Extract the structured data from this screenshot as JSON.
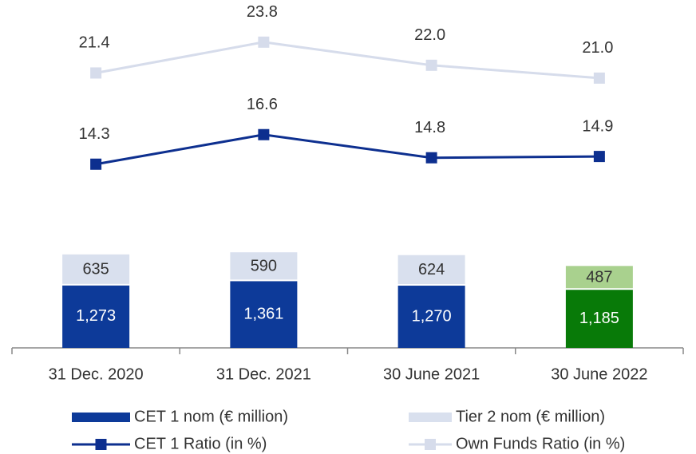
{
  "chart_data": {
    "type": "combo",
    "categories": [
      "31 Dec. 2020",
      "31 Dec. 2021",
      "30 June 2021",
      "30 June 2022"
    ],
    "series": [
      {
        "name": "CET 1 nom (€ million)",
        "type": "bar",
        "color": "#0d3a99",
        "colors": [
          "#0d3a99",
          "#0d3a99",
          "#0d3a99",
          "#087a08"
        ],
        "values": [
          1273,
          1361,
          1270,
          1185
        ],
        "value_labels": [
          "1,273",
          "1,361",
          "1,270",
          "1,185"
        ]
      },
      {
        "name": "Tier 2 nom (€ million)",
        "type": "bar",
        "color": "#d9e0ee",
        "colors": [
          "#d9e0ee",
          "#d9e0ee",
          "#d9e0ee",
          "#a9d18e"
        ],
        "values": [
          635,
          590,
          624,
          487
        ],
        "value_labels": [
          "635",
          "590",
          "624",
          "487"
        ]
      },
      {
        "name": "CET 1 Ratio (in %)",
        "type": "line",
        "axis": "y2",
        "color": "#0d2f8f",
        "values": [
          14.3,
          16.6,
          14.8,
          14.9
        ],
        "value_labels": [
          "14.3",
          "16.6",
          "14.8",
          "14.9"
        ]
      },
      {
        "name": "Own Funds Ratio (in %)",
        "type": "line",
        "axis": "y2",
        "color": "#d6dceb",
        "values": [
          21.4,
          23.8,
          22.0,
          21.0
        ],
        "value_labels": [
          "21.4",
          "23.8",
          "22.0",
          "21.0"
        ]
      }
    ],
    "stacked": true
  }
}
